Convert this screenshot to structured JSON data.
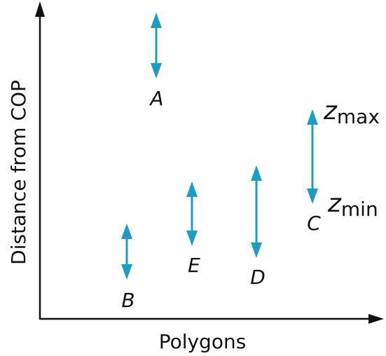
{
  "axes": {
    "y_label": "Distance from COP",
    "x_label": "Polygons"
  },
  "polygons": [
    {
      "label": "A"
    },
    {
      "label": "B"
    },
    {
      "label": "C"
    },
    {
      "label": "D"
    },
    {
      "label": "E"
    }
  ],
  "annotations": {
    "z_max": {
      "symbol": "z",
      "subscript": "max"
    },
    "z_min": {
      "symbol": "z",
      "subscript": "min"
    }
  }
}
